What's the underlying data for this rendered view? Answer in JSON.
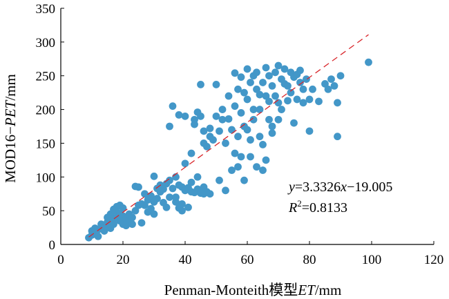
{
  "chart_data": {
    "type": "scatter",
    "title": "",
    "xlabel": {
      "prefix": "Penman-Monteith模型",
      "italic": "ET",
      "suffix": "/mm"
    },
    "ylabel": {
      "prefix": "MOD16−",
      "italic": "PET",
      "suffix": "/mm"
    },
    "xlim": [
      0,
      120
    ],
    "ylim": [
      0,
      350
    ],
    "xticks": [
      0,
      20,
      40,
      60,
      80,
      100,
      120
    ],
    "yticks": [
      0,
      50,
      100,
      150,
      200,
      250,
      300,
      350
    ],
    "grid": false,
    "point_color": "#4397c8",
    "fit_line_color": "#d9262b",
    "fit_line": {
      "slope": 3.3326,
      "intercept": -19.005,
      "x_range": [
        9,
        99
      ]
    },
    "equation": {
      "lhs": "y",
      "rhs_a": "=3.3326",
      "x": "x",
      "rhs_b": "−19.005"
    },
    "r2": {
      "R": "R",
      "sup": "2",
      "value": "=0.8133"
    },
    "points": [
      [
        9,
        10
      ],
      [
        10,
        14
      ],
      [
        10,
        20
      ],
      [
        11,
        18
      ],
      [
        11,
        24
      ],
      [
        12,
        12
      ],
      [
        12,
        22
      ],
      [
        13,
        25
      ],
      [
        13,
        30
      ],
      [
        14,
        20
      ],
      [
        14,
        28
      ],
      [
        15,
        33
      ],
      [
        15,
        40
      ],
      [
        16,
        24
      ],
      [
        16,
        35
      ],
      [
        16,
        45
      ],
      [
        17,
        30
      ],
      [
        17,
        38
      ],
      [
        17,
        52
      ],
      [
        18,
        40
      ],
      [
        18,
        48
      ],
      [
        18,
        56
      ],
      [
        19,
        35
      ],
      [
        19,
        45
      ],
      [
        19,
        58
      ],
      [
        20,
        30
      ],
      [
        20,
        42
      ],
      [
        20,
        54
      ],
      [
        21,
        38
      ],
      [
        21,
        28
      ],
      [
        22,
        45
      ],
      [
        22,
        35
      ],
      [
        23,
        40
      ],
      [
        23,
        30
      ],
      [
        24,
        50
      ],
      [
        24,
        86
      ],
      [
        25,
        58
      ],
      [
        25,
        85
      ],
      [
        26,
        60
      ],
      [
        26,
        32
      ],
      [
        27,
        75
      ],
      [
        27,
        58
      ],
      [
        28,
        66
      ],
      [
        28,
        48
      ],
      [
        29,
        53
      ],
      [
        29,
        72
      ],
      [
        30,
        45
      ],
      [
        30,
        63
      ],
      [
        30,
        101
      ],
      [
        31,
        83
      ],
      [
        31,
        68
      ],
      [
        32,
        88
      ],
      [
        32,
        78
      ],
      [
        33,
        82
      ],
      [
        33,
        62
      ],
      [
        34,
        90
      ],
      [
        34,
        55
      ],
      [
        35,
        70
      ],
      [
        35,
        95
      ],
      [
        35,
        175
      ],
      [
        36,
        83
      ],
      [
        36,
        205
      ],
      [
        37,
        63
      ],
      [
        37,
        100
      ],
      [
        37,
        70
      ],
      [
        38,
        54
      ],
      [
        38,
        88
      ],
      [
        38,
        192
      ],
      [
        39,
        50
      ],
      [
        39,
        85
      ],
      [
        39,
        60
      ],
      [
        40,
        80
      ],
      [
        40,
        120
      ],
      [
        40,
        190
      ],
      [
        41,
        84
      ],
      [
        41,
        55
      ],
      [
        42,
        78
      ],
      [
        42,
        135
      ],
      [
        42,
        92
      ],
      [
        43,
        185
      ],
      [
        43,
        178
      ],
      [
        43,
        77
      ],
      [
        44,
        196
      ],
      [
        44,
        82
      ],
      [
        44,
        100
      ],
      [
        45,
        190
      ],
      [
        45,
        76
      ],
      [
        45,
        237
      ],
      [
        46,
        168
      ],
      [
        46,
        150
      ],
      [
        46,
        85
      ],
      [
        46,
        75
      ],
      [
        47,
        145
      ],
      [
        47,
        78
      ],
      [
        48,
        160
      ],
      [
        48,
        172
      ],
      [
        48,
        75
      ],
      [
        49,
        155
      ],
      [
        50,
        190
      ],
      [
        50,
        237
      ],
      [
        51,
        168
      ],
      [
        51,
        95
      ],
      [
        52,
        200
      ],
      [
        52,
        185
      ],
      [
        53,
        150
      ],
      [
        53,
        80
      ],
      [
        54,
        186
      ],
      [
        54,
        220
      ],
      [
        55,
        170
      ],
      [
        55,
        110
      ],
      [
        56,
        205
      ],
      [
        56,
        254
      ],
      [
        56,
        135
      ],
      [
        57,
        160
      ],
      [
        57,
        115
      ],
      [
        57,
        230
      ],
      [
        58,
        248
      ],
      [
        58,
        195
      ],
      [
        58,
        130
      ],
      [
        59,
        175
      ],
      [
        59,
        225
      ],
      [
        59,
        95
      ],
      [
        60,
        260
      ],
      [
        60,
        215
      ],
      [
        60,
        170
      ],
      [
        61,
        240
      ],
      [
        61,
        130
      ],
      [
        61,
        155
      ],
      [
        62,
        250
      ],
      [
        62,
        200
      ],
      [
        62,
        185
      ],
      [
        63,
        230
      ],
      [
        63,
        255
      ],
      [
        63,
        115
      ],
      [
        64,
        222
      ],
      [
        64,
        160
      ],
      [
        64,
        200
      ],
      [
        65,
        240
      ],
      [
        65,
        148
      ],
      [
        65,
        110
      ],
      [
        66,
        262
      ],
      [
        66,
        220
      ],
      [
        66,
        125
      ],
      [
        67,
        212
      ],
      [
        67,
        250
      ],
      [
        67,
        185
      ],
      [
        68,
        235
      ],
      [
        68,
        175
      ],
      [
        68,
        165
      ],
      [
        69,
        220
      ],
      [
        69,
        255
      ],
      [
        70,
        210
      ],
      [
        70,
        265
      ],
      [
        70,
        185
      ],
      [
        71,
        245
      ],
      [
        71,
        200
      ],
      [
        72,
        238
      ],
      [
        72,
        260
      ],
      [
        73,
        235
      ],
      [
        73,
        213
      ],
      [
        74,
        255
      ],
      [
        74,
        225
      ],
      [
        75,
        248
      ],
      [
        75,
        180
      ],
      [
        76,
        252
      ],
      [
        76,
        215
      ],
      [
        77,
        240
      ],
      [
        77,
        258
      ],
      [
        78,
        230
      ],
      [
        78,
        210
      ],
      [
        79,
        245
      ],
      [
        80,
        215
      ],
      [
        80,
        168
      ],
      [
        81,
        230
      ],
      [
        83,
        212
      ],
      [
        85,
        238
      ],
      [
        86,
        230
      ],
      [
        87,
        245
      ],
      [
        88,
        235
      ],
      [
        89,
        210
      ],
      [
        89,
        160
      ],
      [
        90,
        250
      ],
      [
        99,
        270
      ]
    ]
  }
}
